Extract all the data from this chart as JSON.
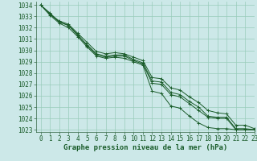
{
  "bg_color": "#cce8e8",
  "grid_color": "#99ccbb",
  "line_color": "#1a5c2a",
  "xlabel": "Graphe pression niveau de la mer (hPa)",
  "xlabel_fontsize": 6.5,
  "tick_fontsize": 5.5,
  "xlim": [
    -0.5,
    23
  ],
  "ylim": [
    1022.8,
    1034.3
  ],
  "yticks": [
    1023,
    1024,
    1025,
    1026,
    1027,
    1028,
    1029,
    1030,
    1031,
    1032,
    1033,
    1034
  ],
  "xticks": [
    0,
    1,
    2,
    3,
    4,
    5,
    6,
    7,
    8,
    9,
    10,
    11,
    12,
    13,
    14,
    15,
    16,
    17,
    18,
    19,
    20,
    21,
    22,
    23
  ],
  "series": [
    [
      1034.0,
      1033.2,
      1032.5,
      1032.2,
      1031.3,
      1030.5,
      1029.7,
      1029.5,
      1029.6,
      1029.6,
      1029.2,
      1028.9,
      1027.3,
      1027.2,
      1026.3,
      1026.1,
      1025.5,
      1025.0,
      1024.2,
      1024.1,
      1024.1,
      1023.1,
      1023.1,
      1023.0
    ],
    [
      1034.0,
      1033.2,
      1032.6,
      1032.3,
      1031.5,
      1030.7,
      1029.9,
      1029.7,
      1029.8,
      1029.7,
      1029.4,
      1029.1,
      1027.6,
      1027.5,
      1026.7,
      1026.5,
      1025.9,
      1025.4,
      1024.7,
      1024.5,
      1024.4,
      1023.4,
      1023.4,
      1023.1
    ],
    [
      1034.0,
      1033.3,
      1032.5,
      1032.2,
      1031.4,
      1030.4,
      1029.6,
      1029.4,
      1029.5,
      1029.5,
      1029.1,
      1028.8,
      1027.1,
      1027.0,
      1026.1,
      1025.9,
      1025.3,
      1024.7,
      1024.1,
      1024.0,
      1024.0,
      1023.0,
      1023.0,
      1023.0
    ],
    [
      1034.0,
      1033.1,
      1032.4,
      1032.0,
      1031.2,
      1030.3,
      1029.5,
      1029.3,
      1029.4,
      1029.3,
      1029.0,
      1028.7,
      1026.4,
      1026.2,
      1025.1,
      1024.9,
      1024.2,
      1023.6,
      1023.2,
      1023.1,
      1023.1,
      1023.0,
      1023.0,
      1023.0
    ]
  ]
}
